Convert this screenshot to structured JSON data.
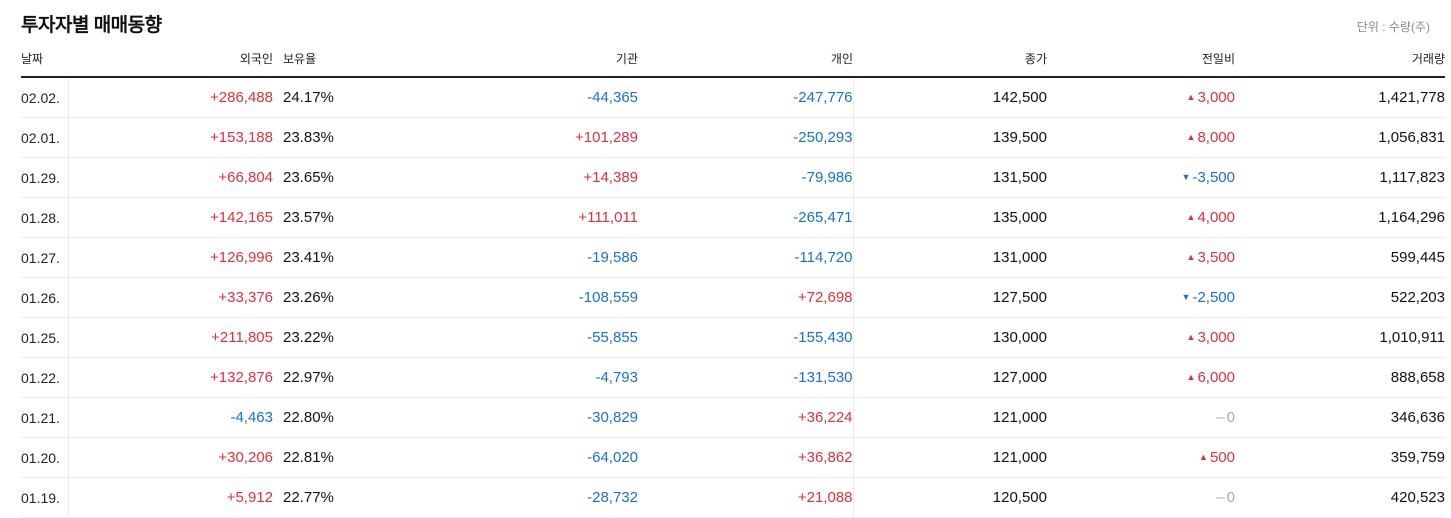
{
  "header": {
    "title": "투자자별 매매동향",
    "unit": "단위 : 수량(주)"
  },
  "columns": {
    "date": "날짜",
    "foreign": "외국인",
    "ratio": "보유율",
    "institution": "기관",
    "individual": "개인",
    "close": "종가",
    "change": "전일비",
    "volume": "거래량"
  },
  "colors": {
    "up": "#e0323a",
    "down": "#1a6fd6",
    "flat": "#a8a8a8"
  },
  "rows": [
    {
      "date": "02.02.",
      "foreign": "+286,488",
      "ratio": "24.17%",
      "institution": "-44,365",
      "individual": "-247,776",
      "close": "142,500",
      "change": "3,000",
      "change_dir": "up",
      "volume": "1,421,778"
    },
    {
      "date": "02.01.",
      "foreign": "+153,188",
      "ratio": "23.83%",
      "institution": "+101,289",
      "individual": "-250,293",
      "close": "139,500",
      "change": "8,000",
      "change_dir": "up",
      "volume": "1,056,831"
    },
    {
      "date": "01.29.",
      "foreign": "+66,804",
      "ratio": "23.65%",
      "institution": "+14,389",
      "individual": "-79,986",
      "close": "131,500",
      "change": "-3,500",
      "change_dir": "down",
      "volume": "1,117,823"
    },
    {
      "date": "01.28.",
      "foreign": "+142,165",
      "ratio": "23.57%",
      "institution": "+111,011",
      "individual": "-265,471",
      "close": "135,000",
      "change": "4,000",
      "change_dir": "up",
      "volume": "1,164,296"
    },
    {
      "date": "01.27.",
      "foreign": "+126,996",
      "ratio": "23.41%",
      "institution": "-19,586",
      "individual": "-114,720",
      "close": "131,000",
      "change": "3,500",
      "change_dir": "up",
      "volume": "599,445"
    },
    {
      "date": "01.26.",
      "foreign": "+33,376",
      "ratio": "23.26%",
      "institution": "-108,559",
      "individual": "+72,698",
      "close": "127,500",
      "change": "-2,500",
      "change_dir": "down",
      "volume": "522,203"
    },
    {
      "date": "01.25.",
      "foreign": "+211,805",
      "ratio": "23.22%",
      "institution": "-55,855",
      "individual": "-155,430",
      "close": "130,000",
      "change": "3,000",
      "change_dir": "up",
      "volume": "1,010,911"
    },
    {
      "date": "01.22.",
      "foreign": "+132,876",
      "ratio": "22.97%",
      "institution": "-4,793",
      "individual": "-131,530",
      "close": "127,000",
      "change": "6,000",
      "change_dir": "up",
      "volume": "888,658"
    },
    {
      "date": "01.21.",
      "foreign": "-4,463",
      "ratio": "22.80%",
      "institution": "-30,829",
      "individual": "+36,224",
      "close": "121,000",
      "change": "0",
      "change_dir": "flat",
      "volume": "346,636"
    },
    {
      "date": "01.20.",
      "foreign": "+30,206",
      "ratio": "22.81%",
      "institution": "-64,020",
      "individual": "+36,862",
      "close": "121,000",
      "change": "500",
      "change_dir": "up",
      "volume": "359,759"
    },
    {
      "date": "01.19.",
      "foreign": "+5,912",
      "ratio": "22.77%",
      "institution": "-28,732",
      "individual": "+21,088",
      "close": "120,500",
      "change": "0",
      "change_dir": "flat",
      "volume": "420,523"
    }
  ]
}
